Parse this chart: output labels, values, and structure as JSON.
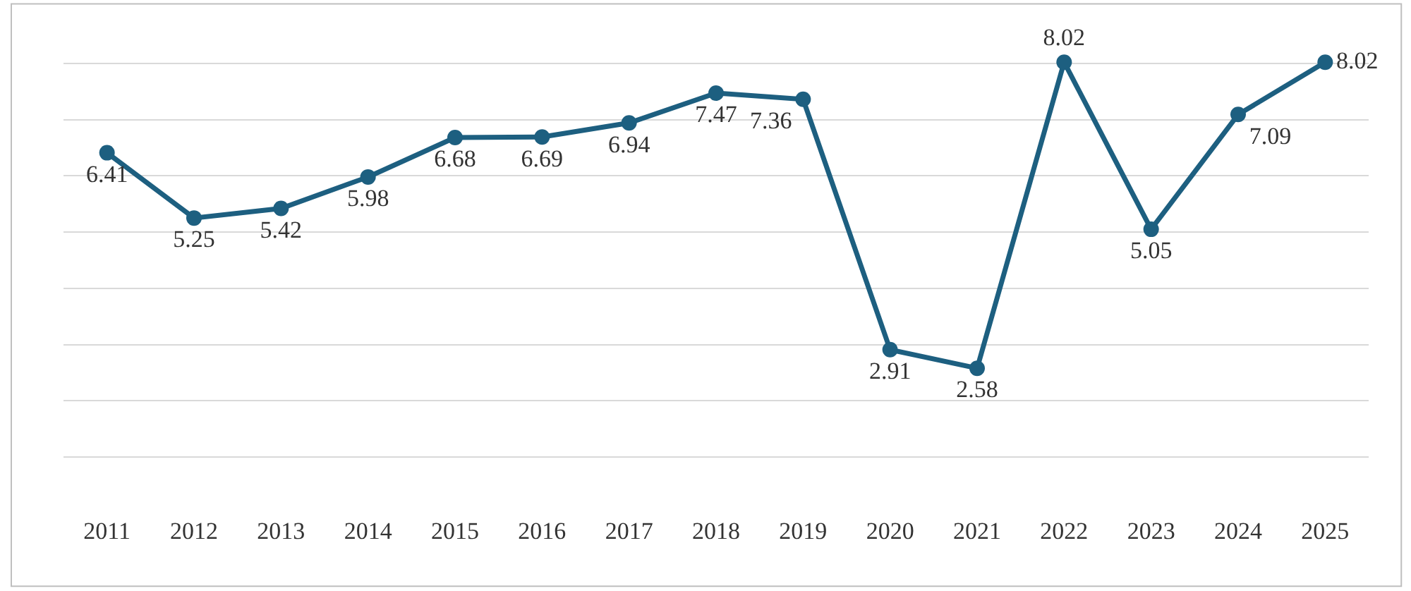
{
  "chart_data": {
    "type": "line",
    "categories": [
      "2011",
      "2012",
      "2013",
      "2014",
      "2015",
      "2016",
      "2017",
      "2018",
      "2019",
      "2020",
      "2021",
      "2022",
      "2023",
      "2024",
      "2025"
    ],
    "series": [
      {
        "color": "#1d5f80",
        "values": [
          6.41,
          5.25,
          5.42,
          5.98,
          6.68,
          6.69,
          6.94,
          7.47,
          7.36,
          2.91,
          2.58,
          8.02,
          5.05,
          7.09,
          8.02
        ]
      }
    ],
    "tick_labels": "x",
    "grid": "y",
    "marker": "circle",
    "line_style": "solid",
    "data_labels": true,
    "legend": false
  }
}
